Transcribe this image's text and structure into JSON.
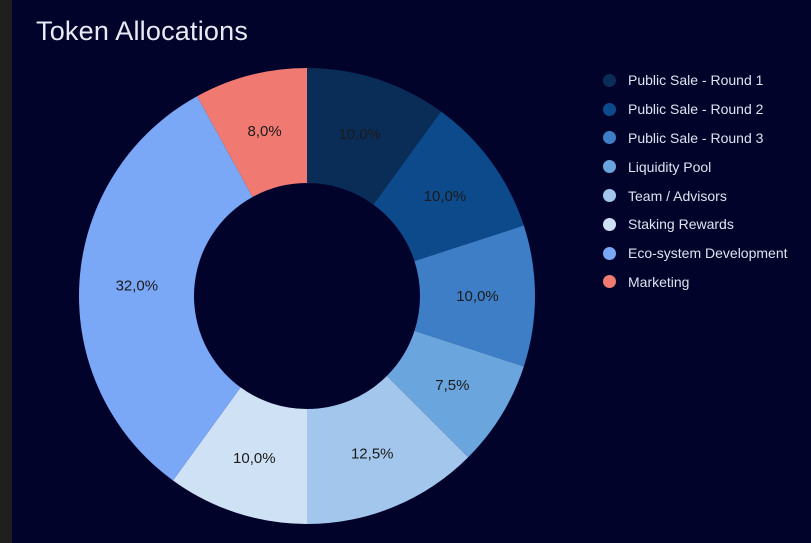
{
  "chart_data": {
    "type": "pie",
    "title": "Token Allocations",
    "donut": true,
    "legend_position": "right",
    "categories": [
      "Public Sale - Round 1",
      "Public Sale - Round 2",
      "Public Sale - Round 3",
      "Liquidity Pool",
      "Team / Advisors",
      "Staking Rewards",
      "Eco-system Development",
      "Marketing"
    ],
    "values": [
      10.0,
      10.0,
      10.0,
      7.5,
      12.5,
      10.0,
      32.0,
      8.0
    ],
    "data_labels": [
      "10,0%",
      "10,0%",
      "10,0%",
      "7,5%",
      "12,5%",
      "10,0%",
      "32,0%",
      "8,0%"
    ],
    "colors": [
      "#0a2d57",
      "#0d4a8c",
      "#3d7ec7",
      "#6aa5de",
      "#a3c7ec",
      "#cfe1f4",
      "#7aa8f7",
      "#f07a72"
    ],
    "background_color": "#01032b"
  }
}
